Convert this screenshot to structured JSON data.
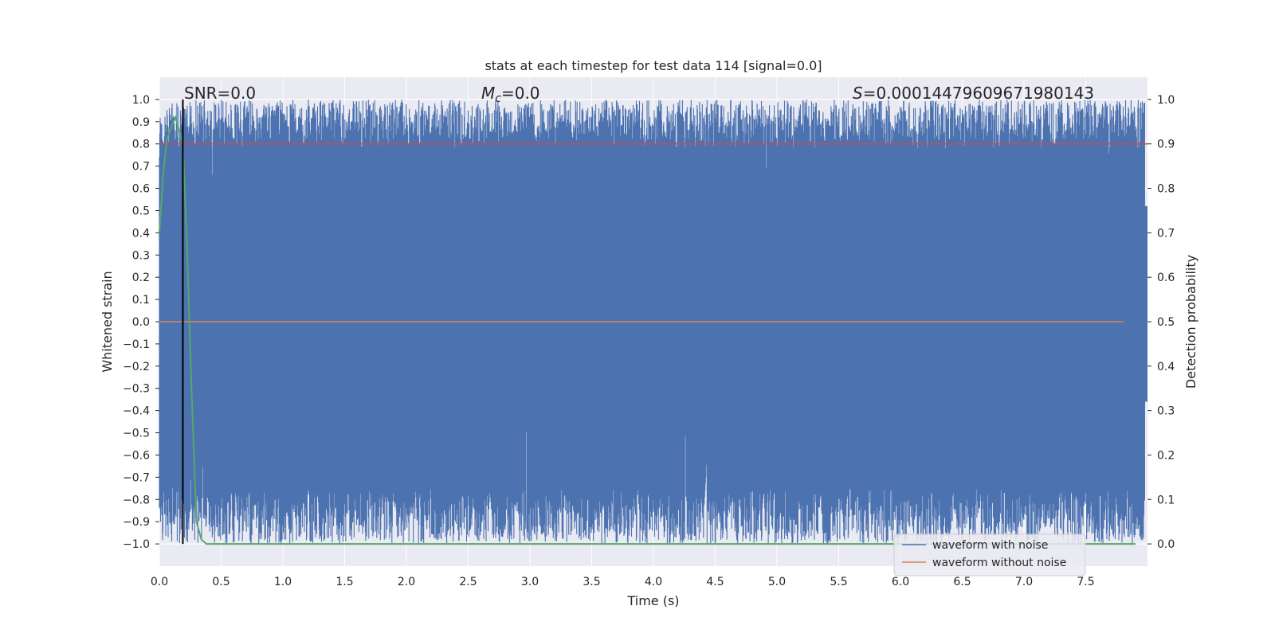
{
  "chart_data": {
    "type": "line",
    "title": "stats at each timestep for test data 114 [signal=0.0]",
    "xlabel": "Time (s)",
    "ylabel_left": "Whitened strain",
    "ylabel_right": "Detection probability",
    "xlim": [
      0.0,
      8.0
    ],
    "ylim_left": [
      -1.1,
      1.1
    ],
    "ylim_right": [
      -0.05,
      1.05
    ],
    "xticks": [
      "0.0",
      "0.5",
      "1.0",
      "1.5",
      "2.0",
      "2.5",
      "3.0",
      "3.5",
      "4.0",
      "4.5",
      "5.0",
      "5.5",
      "6.0",
      "6.5",
      "7.0",
      "7.5"
    ],
    "yticks_left": [
      "1.0",
      "0.9",
      "0.8",
      "0.7",
      "0.6",
      "0.5",
      "0.4",
      "0.3",
      "0.2",
      "0.1",
      "0.0",
      "−0.1",
      "−0.2",
      "−0.3",
      "−0.4",
      "−0.5",
      "−0.6",
      "−0.7",
      "−0.8",
      "−0.9",
      "−1.0"
    ],
    "yticks_right": [
      "1.0",
      "0.9",
      "0.8",
      "0.7",
      "0.6",
      "0.5",
      "0.4",
      "0.3",
      "0.2",
      "0.1",
      "0.0"
    ],
    "annotations": {
      "snr": "SNR=0.0",
      "mc_symbol": "M",
      "mc_sub": "c",
      "mc_value": "=0.0",
      "s_symbol": "S",
      "s_value": "=0.00014479609671980143"
    },
    "grid": true,
    "legend_position": "bottom-right",
    "series": [
      {
        "name": "waveform with noise",
        "color": "#4c72b0",
        "axis": "left",
        "description": "dense noise spanning roughly -1.0 to 1.0 over full duration"
      },
      {
        "name": "waveform without noise",
        "color": "#dd8452",
        "axis": "left",
        "values_constant": 0.0
      },
      {
        "axis": "right",
        "color": "#55a868",
        "x": [
          0.0,
          0.03,
          0.06,
          0.1,
          0.13,
          0.16,
          0.19,
          0.22,
          0.26,
          0.3,
          0.34,
          0.38,
          8.0
        ],
        "y": [
          0.7,
          0.83,
          0.91,
          0.94,
          0.96,
          0.93,
          0.9,
          0.7,
          0.35,
          0.05,
          0.01,
          0.0,
          0.0
        ]
      }
    ],
    "threshold_right": 0.9,
    "threshold_color": "#c44e52",
    "marker_x": 0.19,
    "marker_color": "#000000",
    "background": "#eaeaf2"
  }
}
